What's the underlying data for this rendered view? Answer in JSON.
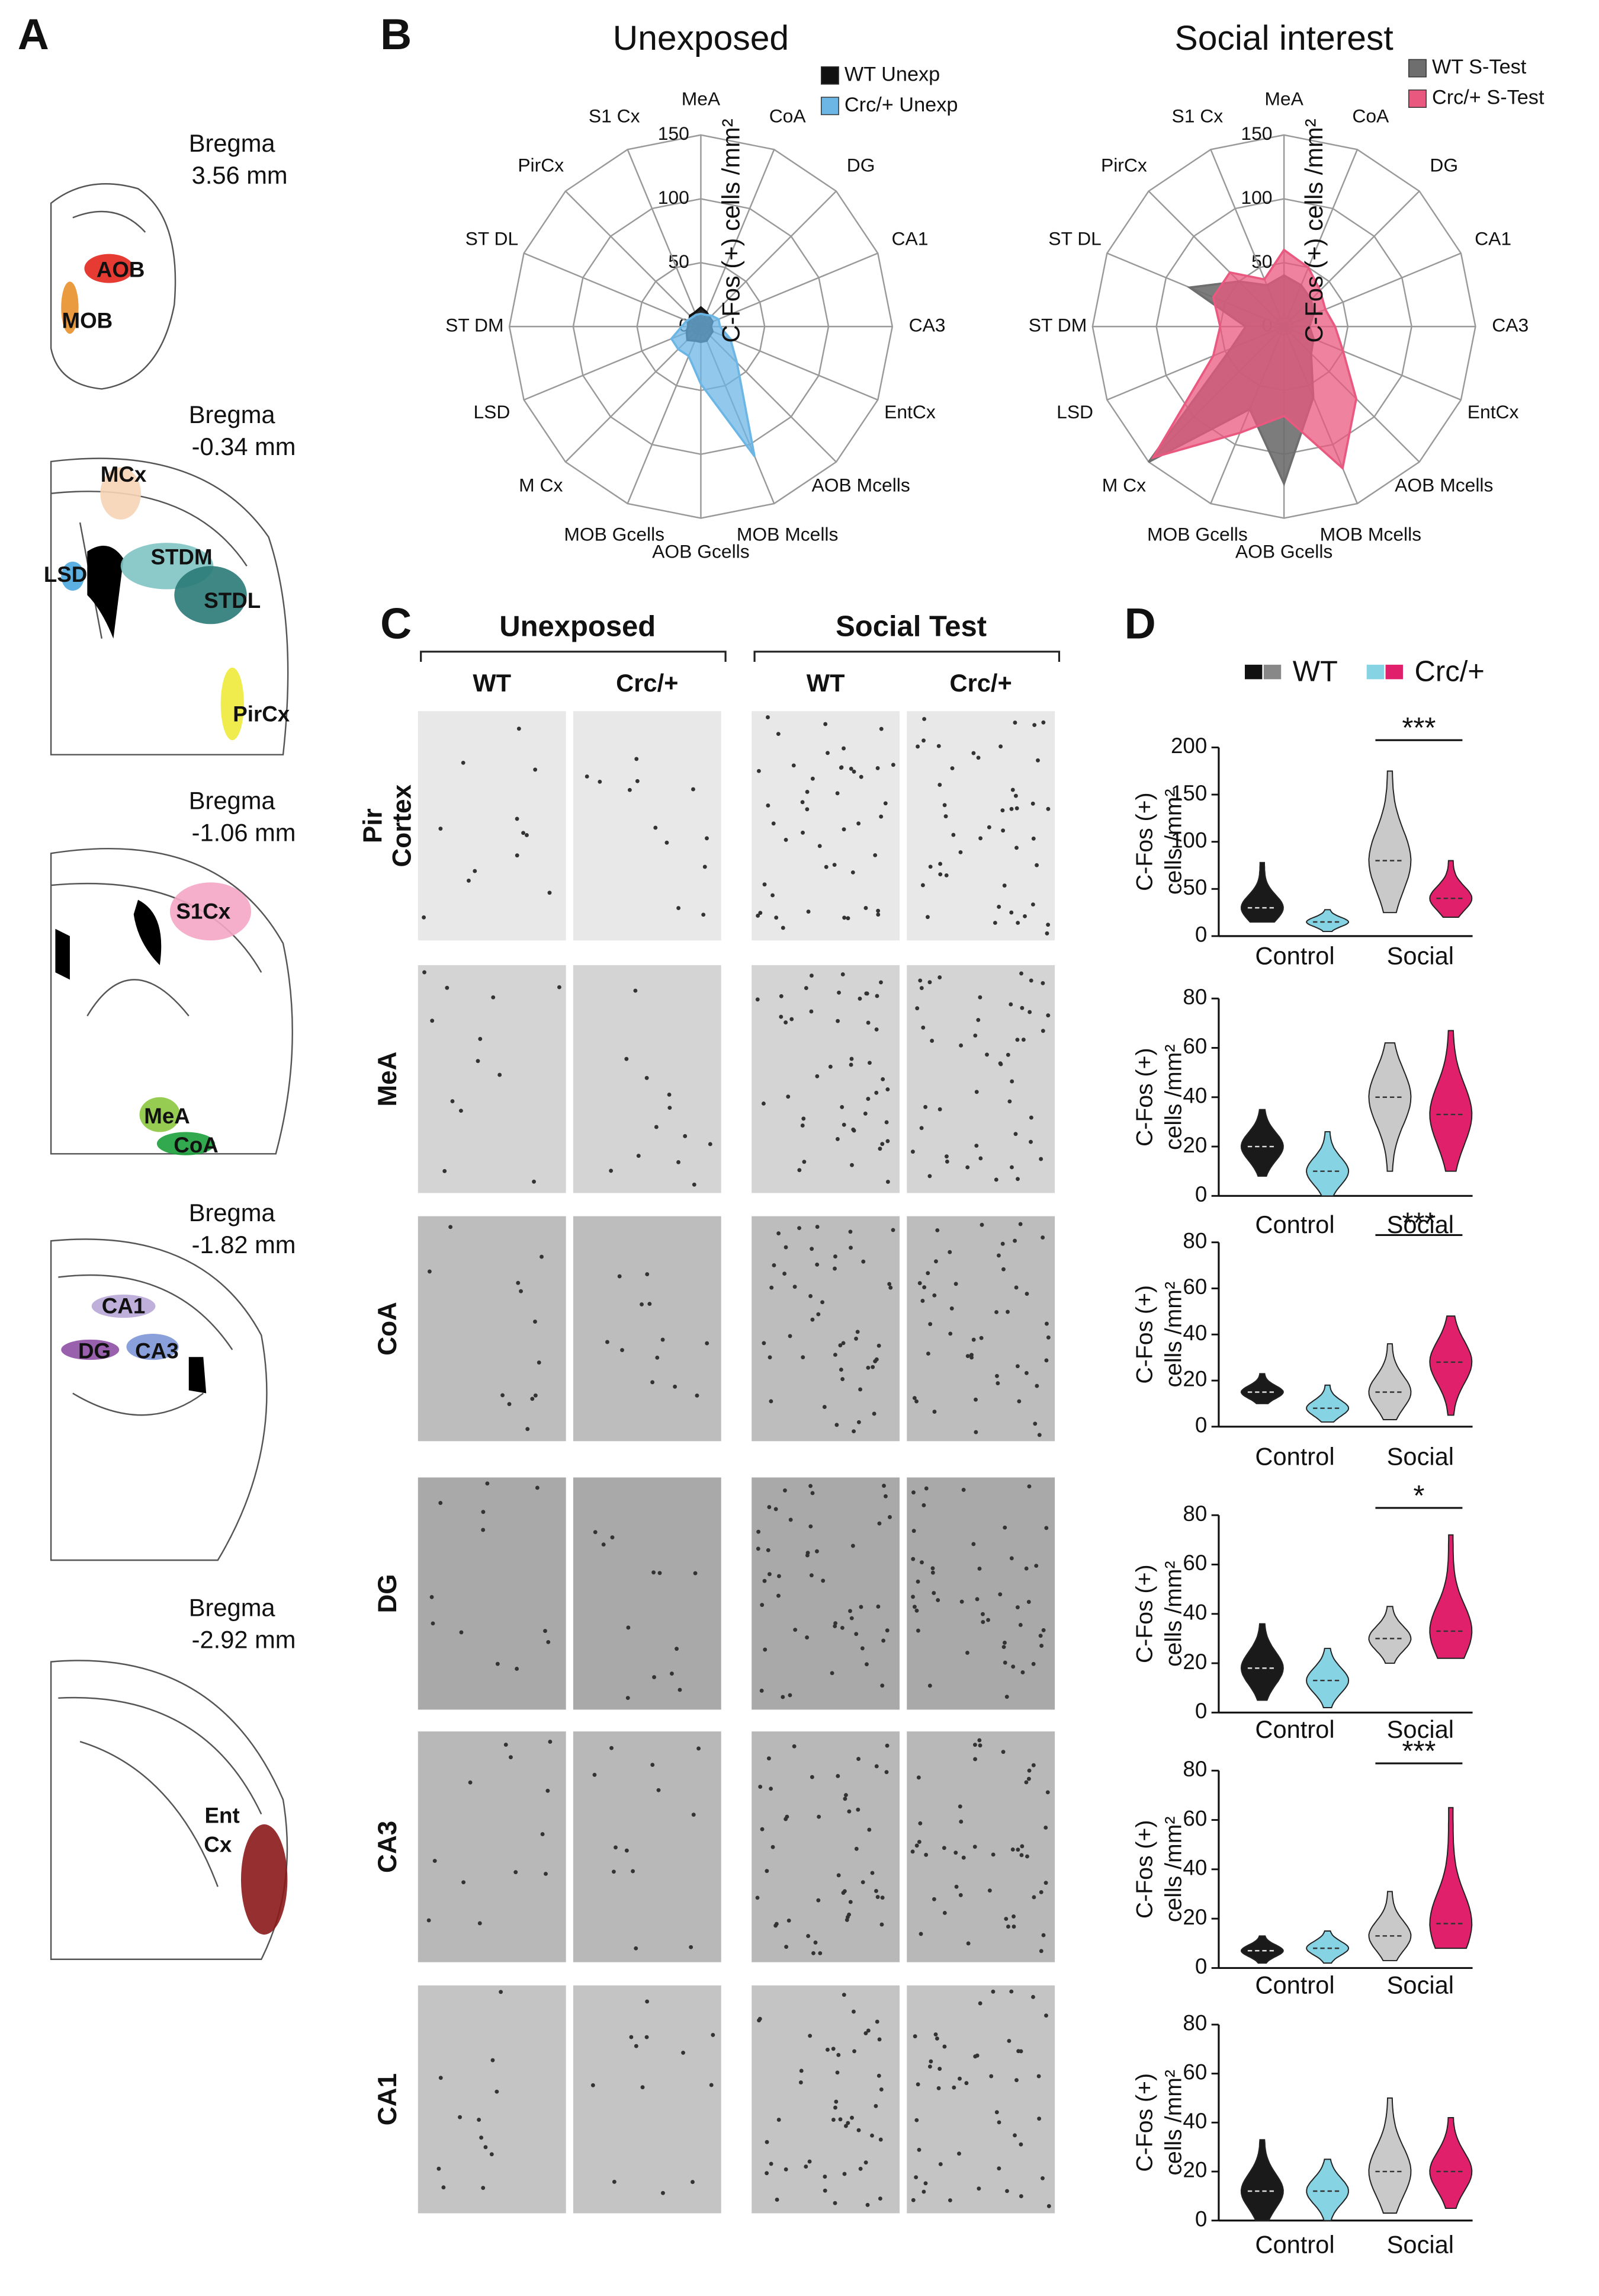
{
  "figure": {
    "A": {
      "label": "A",
      "sections": [
        {
          "bregma": "Bregma",
          "level": "3.56 mm",
          "regions": [
            "AOB",
            "MOB"
          ]
        },
        {
          "bregma": "Bregma",
          "level": "-0.34 mm",
          "regions": [
            "MCx",
            "STDM",
            "LSD",
            "STDL",
            "PirCx"
          ]
        },
        {
          "bregma": "Bregma",
          "level": "-1.06 mm",
          "regions": [
            "S1Cx",
            "MeA",
            "CoA"
          ]
        },
        {
          "bregma": "Bregma",
          "level": "-1.82 mm",
          "regions": [
            "CA1",
            "DG",
            "CA3"
          ]
        },
        {
          "bregma": "Bregma",
          "level": "-2.92 mm",
          "regions": [
            "Ent",
            "Cx"
          ]
        }
      ]
    },
    "B": {
      "label": "B"
    },
    "C": {
      "label": "C",
      "groups": [
        "Unexposed",
        "Social Test"
      ],
      "columns": [
        "WT",
        "Crc/+",
        "WT",
        "Crc/+"
      ],
      "rows": [
        [
          "Pir",
          "Cortex"
        ],
        [
          "MeA"
        ],
        [
          "CoA"
        ],
        [
          "DG"
        ],
        [
          "CA3"
        ],
        [
          "CA1"
        ]
      ]
    },
    "D": {
      "label": "D",
      "legend": [
        "WT",
        "Crc/+"
      ]
    }
  },
  "chart_data": [
    {
      "type": "radar",
      "title": "Unexposed",
      "categories": [
        "MeA",
        "CoA",
        "DG",
        "CA1",
        "CA3",
        "EntCx",
        "AOB Mcells",
        "MOB Mcells",
        "AOB Gcells",
        "MOB Gcells",
        "M Cx",
        "LSD",
        "ST DM",
        "ST DL",
        "PirCx",
        "S1 Cx"
      ],
      "series": [
        {
          "name": "WT Unexp",
          "color": "#111111",
          "values": [
            15,
            12,
            10,
            10,
            8,
            10,
            10,
            12,
            12,
            12,
            15,
            12,
            10,
            10,
            12,
            12
          ]
        },
        {
          "name": "Crc/+ Unexp",
          "color": "#6cb6e6",
          "values": [
            10,
            10,
            12,
            15,
            15,
            25,
            40,
            110,
            45,
            25,
            25,
            25,
            15,
            12,
            10,
            10
          ]
        }
      ],
      "rlim": [
        0,
        150
      ],
      "rticks": [
        0,
        50,
        100,
        150
      ],
      "axis_label": "C-Fos (+) cells /mm²"
    },
    {
      "type": "radar",
      "title": "Social interest",
      "categories": [
        "MeA",
        "CoA",
        "DG",
        "CA1",
        "CA3",
        "EntCx",
        "AOB Mcells",
        "MOB Mcells",
        "AOB Gcells",
        "MOB Gcells",
        "M Cx",
        "LSD",
        "ST DM",
        "ST DL",
        "PirCx",
        "S1 Cx"
      ],
      "series": [
        {
          "name": "WT S-Test",
          "color": "#6e6e6e",
          "values": [
            40,
            35,
            30,
            25,
            20,
            25,
            30,
            60,
            123,
            70,
            150,
            45,
            30,
            80,
            50,
            35
          ]
        },
        {
          "name": "Crc/+ S-Test",
          "color": "#e9587f",
          "values": [
            60,
            50,
            40,
            35,
            40,
            50,
            80,
            120,
            70,
            90,
            145,
            60,
            50,
            60,
            60,
            40
          ]
        }
      ],
      "rlim": [
        0,
        150
      ],
      "rticks": [
        0,
        50,
        100,
        150
      ],
      "axis_label": "C-Fos (+) cells /mm²"
    },
    {
      "type": "violin",
      "categories": [
        "Control",
        "Social"
      ],
      "ylim": [
        0,
        200
      ],
      "yticks": [
        0,
        50,
        100,
        150,
        200
      ],
      "ylabel": [
        "C-Fos (+)",
        "cells /mm²"
      ],
      "annotation": "***",
      "series": [
        {
          "colors": [
            "#1a1a1a",
            "#c9c9c9"
          ],
          "values": [
            30,
            80
          ],
          "min": [
            15,
            25
          ],
          "max": [
            78,
            175
          ]
        },
        {
          "colors": [
            "#86d3e3",
            "#e0206a"
          ],
          "values": [
            15,
            40
          ],
          "min": [
            5,
            20
          ],
          "max": [
            28,
            80
          ]
        }
      ]
    },
    {
      "type": "violin",
      "categories": [
        "Control",
        "Social"
      ],
      "ylim": [
        0,
        80
      ],
      "yticks": [
        0,
        20,
        40,
        60,
        80
      ],
      "ylabel": [
        "C-Fos (+)",
        "cells /mm²"
      ],
      "series": [
        {
          "colors": [
            "#1a1a1a",
            "#c9c9c9"
          ],
          "values": [
            20,
            40
          ],
          "min": [
            8,
            10
          ],
          "max": [
            35,
            62
          ]
        },
        {
          "colors": [
            "#86d3e3",
            "#e0206a"
          ],
          "values": [
            10,
            33
          ],
          "min": [
            0,
            10
          ],
          "max": [
            26,
            67
          ]
        }
      ]
    },
    {
      "type": "violin",
      "categories": [
        "Control",
        "Social"
      ],
      "ylim": [
        0,
        80
      ],
      "yticks": [
        0,
        20,
        40,
        60,
        80
      ],
      "ylabel": [
        "C-Fos (+)",
        "cells /mm²"
      ],
      "annotation": "***",
      "series": [
        {
          "colors": [
            "#1a1a1a",
            "#c9c9c9"
          ],
          "values": [
            15,
            15
          ],
          "min": [
            10,
            3
          ],
          "max": [
            23,
            36
          ]
        },
        {
          "colors": [
            "#86d3e3",
            "#e0206a"
          ],
          "values": [
            8,
            28
          ],
          "min": [
            2,
            5
          ],
          "max": [
            18,
            48
          ]
        }
      ]
    },
    {
      "type": "violin",
      "categories": [
        "Control",
        "Social"
      ],
      "ylim": [
        0,
        80
      ],
      "yticks": [
        0,
        20,
        40,
        60,
        80
      ],
      "ylabel": [
        "C-Fos (+)",
        "cells /mm²"
      ],
      "annotation": "*",
      "series": [
        {
          "colors": [
            "#1a1a1a",
            "#c9c9c9"
          ],
          "values": [
            18,
            30
          ],
          "min": [
            5,
            20
          ],
          "max": [
            36,
            43
          ]
        },
        {
          "colors": [
            "#86d3e3",
            "#e0206a"
          ],
          "values": [
            13,
            33
          ],
          "min": [
            2,
            22
          ],
          "max": [
            26,
            72
          ]
        }
      ]
    },
    {
      "type": "violin",
      "categories": [
        "Control",
        "Social"
      ],
      "ylim": [
        0,
        80
      ],
      "yticks": [
        0,
        20,
        40,
        60,
        80
      ],
      "ylabel": [
        "C-Fos (+)",
        "cells /mm²"
      ],
      "annotation": "***",
      "series": [
        {
          "colors": [
            "#1a1a1a",
            "#c9c9c9"
          ],
          "values": [
            7,
            13
          ],
          "min": [
            2,
            3
          ],
          "max": [
            13,
            31
          ]
        },
        {
          "colors": [
            "#86d3e3",
            "#e0206a"
          ],
          "values": [
            8,
            18
          ],
          "min": [
            2,
            8
          ],
          "max": [
            15,
            65
          ]
        }
      ]
    },
    {
      "type": "violin",
      "categories": [
        "Control",
        "Social"
      ],
      "ylim": [
        0,
        80
      ],
      "yticks": [
        0,
        20,
        40,
        60,
        80
      ],
      "ylabel": [
        "C-Fos (+)",
        "cells /mm²"
      ],
      "series": [
        {
          "colors": [
            "#1a1a1a",
            "#c9c9c9"
          ],
          "values": [
            12,
            20
          ],
          "min": [
            0,
            3
          ],
          "max": [
            33,
            50
          ]
        },
        {
          "colors": [
            "#86d3e3",
            "#e0206a"
          ],
          "values": [
            12,
            20
          ],
          "min": [
            0,
            5
          ],
          "max": [
            25,
            42
          ]
        }
      ]
    }
  ]
}
